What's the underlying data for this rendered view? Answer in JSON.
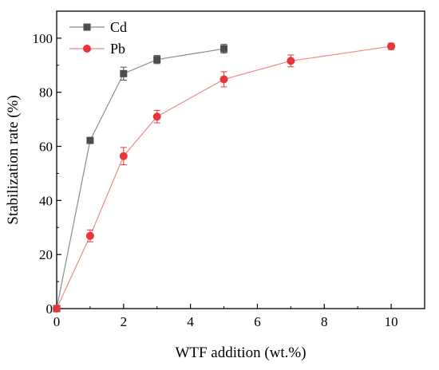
{
  "chart_data": {
    "type": "line",
    "xlabel": "WTF addition (wt.%)",
    "ylabel": "Stabilization rate (%)",
    "xlim": [
      0,
      11
    ],
    "ylim": [
      0,
      110
    ],
    "xticks": [
      0,
      2,
      4,
      6,
      8,
      10
    ],
    "yticks": [
      0,
      20,
      40,
      60,
      80,
      100
    ],
    "grid": false,
    "legend_position": "top-left",
    "series": [
      {
        "name": "Cd",
        "marker": "square",
        "color": "#4d4d4d",
        "line_color": "#8c8c8c",
        "x": [
          0,
          1,
          2,
          3,
          5
        ],
        "y": [
          0,
          62.2,
          86.9,
          92.1,
          96.1
        ],
        "err": [
          0,
          0.8,
          2.4,
          1.5,
          1.6
        ]
      },
      {
        "name": "Pb",
        "marker": "circle",
        "color": "#e8353a",
        "line_color": "#f08a8a",
        "x": [
          0,
          1,
          2,
          3,
          5,
          7,
          10
        ],
        "y": [
          0,
          26.9,
          56.4,
          71.0,
          84.8,
          91.6,
          97.0
        ],
        "err": [
          0,
          2.2,
          3.2,
          2.3,
          2.8,
          2.2,
          1.2
        ]
      }
    ]
  }
}
